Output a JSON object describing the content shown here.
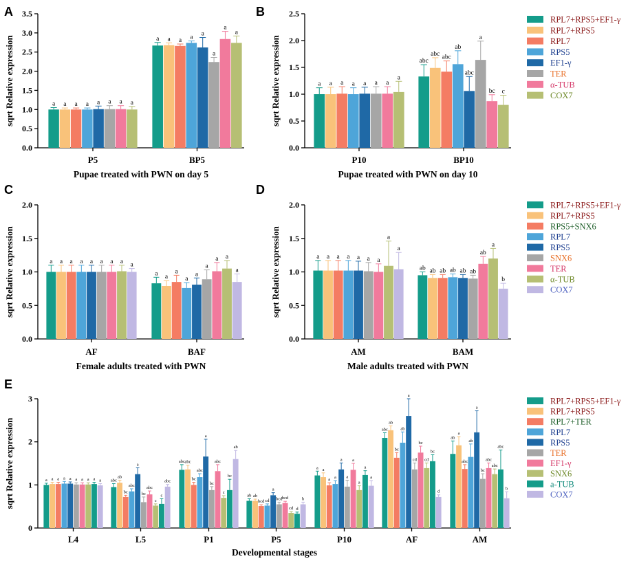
{
  "colors": {
    "teal": "#149c8a",
    "peach": "#f9c27a",
    "salmon": "#f47c63",
    "sky": "#4ea5d9",
    "navy": "#1f69a6",
    "grey": "#a6a6a6",
    "pink": "#f17a9c",
    "olive": "#b6bf74",
    "lavender": "#c0b8e3",
    "darkred": "#8b1a1a",
    "darkgreen": "#1f5f2a",
    "darkblue": "#1d3f8f",
    "orange": "#e8712a",
    "crimson": "#d43767",
    "darkolive": "#6f8a2a",
    "tealtext": "#0f8a7a",
    "purpletext": "#4b5fbf",
    "navytext": "#1d3f8f"
  },
  "chart_data": [
    {
      "type": "bar",
      "panel": "A",
      "ylabel": "sqrt Relative expression",
      "xlabel": "Pupae treated with PWN on day 5",
      "ylim": [
        0,
        3.5
      ],
      "yticks": [
        "0.0",
        "0.5",
        "1.0",
        "1.5",
        "2.0",
        "2.5",
        "3.0",
        "3.5"
      ],
      "categories": [
        "P5",
        "BP5"
      ],
      "legend": [
        "RPL7+RPS5+EF1-γ",
        "RPL7+RPS5",
        "RPL7",
        "RPS5",
        "EF1-γ",
        "TER",
        "α-TUB",
        "COX7"
      ],
      "legend_colors": [
        "teal",
        "peach",
        "salmon",
        "sky",
        "navy",
        "grey",
        "pink",
        "olive"
      ],
      "legend_text_colors": [
        "darkred",
        "darkred",
        "darkred",
        "darkblue",
        "darkblue",
        "orange",
        "crimson",
        "darkolive"
      ],
      "series": [
        {
          "name": "RPL7+RPS5+EF1-γ",
          "values": [
            1.0,
            2.67
          ],
          "errors": [
            0.05,
            0.08
          ],
          "labels": [
            "a",
            "a"
          ]
        },
        {
          "name": "RPL7+RPS5",
          "values": [
            1.0,
            2.68
          ],
          "errors": [
            0.04,
            0.06
          ],
          "labels": [
            "a",
            "a"
          ]
        },
        {
          "name": "RPL7",
          "values": [
            1.0,
            2.66
          ],
          "errors": [
            0.04,
            0.05
          ],
          "labels": [
            "a",
            "a"
          ]
        },
        {
          "name": "RPS5",
          "values": [
            1.0,
            2.74
          ],
          "errors": [
            0.04,
            0.05
          ],
          "labels": [
            "a",
            "a"
          ]
        },
        {
          "name": "EF1-γ",
          "values": [
            1.01,
            2.62
          ],
          "errors": [
            0.08,
            0.26
          ],
          "labels": [
            "a",
            "a"
          ]
        },
        {
          "name": "TER",
          "values": [
            1.01,
            2.24
          ],
          "errors": [
            0.09,
            0.12
          ],
          "labels": [
            "a",
            "a"
          ]
        },
        {
          "name": "α-TUB",
          "values": [
            1.01,
            2.84
          ],
          "errors": [
            0.09,
            0.2
          ],
          "labels": [
            "a",
            "a"
          ]
        },
        {
          "name": "COX7",
          "values": [
            1.0,
            2.74
          ],
          "errors": [
            0.08,
            0.18
          ],
          "labels": [
            "a",
            "a"
          ]
        }
      ]
    },
    {
      "type": "bar",
      "panel": "B",
      "ylabel": "sqrt Relative expression",
      "xlabel": "Pupae treated with PWN on day 10",
      "ylim": [
        0,
        2.5
      ],
      "yticks": [
        "0.0",
        "0.5",
        "1.0",
        "1.5",
        "2.0",
        "2.5"
      ],
      "categories": [
        "P10",
        "BP10"
      ],
      "legend": [
        "RPL7+RPS5+EF1-γ",
        "RPL7+RPS5",
        "RPL7",
        "RPS5",
        "EF1-γ",
        "TER",
        "α-TUB",
        "COX7"
      ],
      "legend_colors": [
        "teal",
        "peach",
        "salmon",
        "sky",
        "navy",
        "grey",
        "pink",
        "olive"
      ],
      "legend_text_colors": [
        "darkred",
        "darkred",
        "darkred",
        "darkblue",
        "darkblue",
        "orange",
        "crimson",
        "darkolive"
      ],
      "series": [
        {
          "name": "RPL7+RPS5+EF1-γ",
          "values": [
            1.0,
            1.33
          ],
          "errors": [
            0.12,
            0.22
          ],
          "labels": [
            "a",
            "abc"
          ]
        },
        {
          "name": "RPL7+RPS5",
          "values": [
            1.0,
            1.49
          ],
          "errors": [
            0.13,
            0.19
          ],
          "labels": [
            "a",
            "abc"
          ]
        },
        {
          "name": "RPL7",
          "values": [
            1.01,
            1.42
          ],
          "errors": [
            0.13,
            0.2
          ],
          "labels": [
            "a",
            "abc"
          ]
        },
        {
          "name": "RPS5",
          "values": [
            1.0,
            1.56
          ],
          "errors": [
            0.12,
            0.25
          ],
          "labels": [
            "a",
            "ab"
          ]
        },
        {
          "name": "EF1-γ",
          "values": [
            1.01,
            1.06
          ],
          "errors": [
            0.12,
            0.27
          ],
          "labels": [
            "a",
            "abc"
          ]
        },
        {
          "name": "TER",
          "values": [
            1.01,
            1.64
          ],
          "errors": [
            0.13,
            0.35
          ],
          "labels": [
            "a",
            "a"
          ]
        },
        {
          "name": "α-TUB",
          "values": [
            1.01,
            0.87
          ],
          "errors": [
            0.13,
            0.12
          ],
          "labels": [
            "a",
            "bc"
          ]
        },
        {
          "name": "COX7",
          "values": [
            1.04,
            0.8
          ],
          "errors": [
            0.2,
            0.18
          ],
          "labels": [
            "a",
            "c"
          ]
        }
      ]
    },
    {
      "type": "bar",
      "panel": "C",
      "ylabel": "sqrt Relative expression",
      "xlabel": "Female adults treated with PWN",
      "ylim": [
        0,
        2.0
      ],
      "yticks": [
        "0.0",
        "0.5",
        "1.0",
        "1.5",
        "2.0"
      ],
      "categories": [
        "AF",
        "BAF"
      ],
      "legend": [],
      "legend_colors": [],
      "legend_text_colors": [],
      "series": [
        {
          "name": "RPL7+RPS5+EF1-γ",
          "values": [
            1.0,
            0.83
          ],
          "errors": [
            0.1,
            0.09
          ],
          "labels": [
            "a",
            "a"
          ]
        },
        {
          "name": "RPL7+RPS5",
          "values": [
            1.0,
            0.79
          ],
          "errors": [
            0.1,
            0.08
          ],
          "labels": [
            "a",
            "a"
          ]
        },
        {
          "name": "RPS5+SNX6",
          "values": [
            1.0,
            0.85
          ],
          "errors": [
            0.1,
            0.1
          ],
          "labels": [
            "a",
            "a"
          ]
        },
        {
          "name": "RPL7",
          "values": [
            1.0,
            0.76
          ],
          "errors": [
            0.1,
            0.08
          ],
          "labels": [
            "a",
            "a"
          ]
        },
        {
          "name": "RPS5",
          "values": [
            1.0,
            0.81
          ],
          "errors": [
            0.1,
            0.1
          ],
          "labels": [
            "a",
            "a"
          ]
        },
        {
          "name": "SNX6",
          "values": [
            1.0,
            0.89
          ],
          "errors": [
            0.1,
            0.14
          ],
          "labels": [
            "a",
            "a"
          ]
        },
        {
          "name": "TER",
          "values": [
            1.0,
            1.01
          ],
          "errors": [
            0.1,
            0.13
          ],
          "labels": [
            "a",
            "a"
          ]
        },
        {
          "name": "α-TUB",
          "values": [
            1.01,
            1.05
          ],
          "errors": [
            0.09,
            0.12
          ],
          "labels": [
            "a",
            "a"
          ]
        },
        {
          "name": "COX7",
          "values": [
            1.0,
            0.85
          ],
          "errors": [
            0.05,
            0.12
          ],
          "labels": [
            "a",
            "a"
          ]
        }
      ]
    },
    {
      "type": "bar",
      "panel": "D",
      "ylabel": "sqrt Relative expression",
      "xlabel": "Male adults treated with PWN",
      "ylim": [
        0,
        2.0
      ],
      "yticks": [
        "0.0",
        "0.5",
        "1.0",
        "1.5",
        "2.0"
      ],
      "categories": [
        "AM",
        "BAM"
      ],
      "legend": [
        "RPL7+RPS5+EF1-γ",
        "RPL7+RPS5",
        "RPS5+SNX6",
        "RPL7",
        "RPS5",
        "SNX6",
        "TER",
        "α-TUB",
        "COX7"
      ],
      "legend_colors": [
        "teal",
        "peach",
        "salmon",
        "sky",
        "navy",
        "grey",
        "pink",
        "olive",
        "lavender"
      ],
      "legend_text_colors": [
        "darkred",
        "darkred",
        "darkgreen",
        "darkblue",
        "darkblue",
        "orange",
        "crimson",
        "darkolive",
        "purpletext"
      ],
      "series": [
        {
          "name": "RPL7+RPS5+EF1-γ",
          "values": [
            1.02,
            0.95
          ],
          "errors": [
            0.15,
            0.05
          ],
          "labels": [
            "a",
            "ab"
          ]
        },
        {
          "name": "RPL7+RPS5",
          "values": [
            1.02,
            0.91
          ],
          "errors": [
            0.15,
            0.05
          ],
          "labels": [
            "a",
            "ab"
          ]
        },
        {
          "name": "RPS5+SNX6",
          "values": [
            1.02,
            0.91
          ],
          "errors": [
            0.15,
            0.05
          ],
          "labels": [
            "a",
            "ab"
          ]
        },
        {
          "name": "RPL7",
          "values": [
            1.02,
            0.92
          ],
          "errors": [
            0.15,
            0.05
          ],
          "labels": [
            "a",
            "ab"
          ]
        },
        {
          "name": "RPS5",
          "values": [
            1.02,
            0.91
          ],
          "errors": [
            0.14,
            0.05
          ],
          "labels": [
            "a",
            "ab"
          ]
        },
        {
          "name": "SNX6",
          "values": [
            1.01,
            0.9
          ],
          "errors": [
            0.13,
            0.05
          ],
          "labels": [
            "a",
            "ab"
          ]
        },
        {
          "name": "TER",
          "values": [
            1.0,
            1.12
          ],
          "errors": [
            0.12,
            0.11
          ],
          "labels": [
            "a",
            "ab"
          ]
        },
        {
          "name": "α-TUB",
          "values": [
            1.09,
            1.2
          ],
          "errors": [
            0.37,
            0.15
          ],
          "labels": [
            "a",
            "a"
          ]
        },
        {
          "name": "COX7",
          "values": [
            1.04,
            0.75
          ],
          "errors": [
            0.25,
            0.08
          ],
          "labels": [
            "a",
            "b"
          ]
        }
      ]
    },
    {
      "type": "bar",
      "panel": "E",
      "ylabel": "sqrt Relative expression",
      "xlabel": "Developmental stages",
      "ylim": [
        0,
        3
      ],
      "yticks": [
        "0",
        "1",
        "2",
        "3"
      ],
      "categories": [
        "L4",
        "L5",
        "P1",
        "P5",
        "P10",
        "AF",
        "AM"
      ],
      "legend": [
        "RPL7+RPS5+EF1-γ",
        "RPL7+RPS5",
        "RPL7+TER",
        "RPL7",
        "RPS5",
        "TER",
        "EF1-γ",
        "SNX6",
        "a-TUB",
        "COX7"
      ],
      "legend_colors": [
        "teal",
        "peach",
        "salmon",
        "sky",
        "navy",
        "grey",
        "pink",
        "olive",
        "teal",
        "lavender"
      ],
      "legend_text_colors": [
        "darkred",
        "darkred",
        "darkgreen",
        "darkblue",
        "darkblue",
        "orange",
        "crimson",
        "darkolive",
        "tealtext",
        "purpletext"
      ],
      "series": [
        {
          "name": "RPL7+RPS5+EF1-γ",
          "values": [
            1.0,
            0.95,
            1.35,
            0.63,
            1.22,
            2.09,
            1.72
          ],
          "errors": [
            0.04,
            0.08,
            0.12,
            0.05,
            0.1,
            0.12,
            0.3
          ],
          "labels": [
            "a",
            "abc",
            "abc",
            "ab",
            "a",
            "abc",
            "ab"
          ]
        },
        {
          "name": "RPL7+RPS5",
          "values": [
            1.02,
            1.05,
            1.36,
            0.63,
            1.18,
            2.27,
            1.92
          ],
          "errors": [
            0.04,
            0.06,
            0.1,
            0.04,
            0.1,
            0.1,
            0.2
          ],
          "labels": [
            "a",
            "ab",
            "abc",
            "ab",
            "a",
            "ab",
            "a"
          ]
        },
        {
          "name": "RPL7+TER",
          "values": [
            1.02,
            0.72,
            1.0,
            0.51,
            0.99,
            1.63,
            1.37
          ],
          "errors": [
            0.04,
            0.04,
            0.06,
            0.03,
            0.06,
            0.12,
            0.1
          ],
          "labels": [
            "a",
            "bc",
            "bc",
            "bcd",
            "a",
            "bc",
            "abc"
          ]
        },
        {
          "name": "RPL7",
          "values": [
            1.03,
            0.85,
            1.18,
            0.52,
            1.02,
            1.98,
            1.65
          ],
          "errors": [
            0.05,
            0.06,
            0.08,
            0.04,
            0.08,
            0.25,
            0.3
          ],
          "labels": [
            "a",
            "abc",
            "abc",
            "cd",
            "a",
            "ab",
            "ab"
          ]
        },
        {
          "name": "RPS5",
          "values": [
            1.03,
            1.25,
            1.66,
            0.76,
            1.36,
            2.6,
            2.22
          ],
          "errors": [
            0.04,
            0.15,
            0.4,
            0.06,
            0.15,
            0.4,
            0.5
          ],
          "labels": [
            "a",
            "a",
            "a",
            "a",
            "a",
            "a",
            "a"
          ]
        },
        {
          "name": "TER",
          "values": [
            1.01,
            0.6,
            0.88,
            0.55,
            0.96,
            1.36,
            1.14
          ],
          "errors": [
            0.04,
            0.12,
            0.08,
            0.05,
            0.15,
            0.15,
            0.12
          ],
          "labels": [
            "a",
            "bc",
            "bc",
            "bcd",
            "a",
            "cd",
            "bc"
          ]
        },
        {
          "name": "EF1-γ",
          "values": [
            1.01,
            0.78,
            1.32,
            0.58,
            1.35,
            1.75,
            1.39
          ],
          "errors": [
            0.04,
            0.08,
            0.15,
            0.04,
            0.15,
            0.15,
            0.12
          ],
          "labels": [
            "a",
            "abc",
            "abc",
            "bcd",
            "a",
            "bc",
            "abc"
          ]
        },
        {
          "name": "SNX6",
          "values": [
            1.01,
            0.52,
            0.7,
            0.35,
            0.88,
            1.39,
            1.25
          ],
          "errors": [
            0.04,
            0.04,
            0.05,
            0.03,
            0.1,
            0.12,
            0.12
          ],
          "labels": [
            "a",
            "c",
            "c",
            "cd",
            "a",
            "cd",
            "abc"
          ]
        },
        {
          "name": "a-TUB",
          "values": [
            1.02,
            0.56,
            0.88,
            0.33,
            1.23,
            1.55,
            1.36
          ],
          "errors": [
            0.04,
            0.12,
            0.25,
            0.04,
            0.1,
            0.15,
            0.45
          ],
          "labels": [
            "a",
            "c",
            "bc",
            "d",
            "a",
            "bc",
            "abc"
          ]
        },
        {
          "name": "COX7",
          "values": [
            0.99,
            0.96,
            1.6,
            0.55,
            0.98,
            0.72,
            0.69
          ],
          "errors": [
            0.04,
            0.05,
            0.2,
            0.05,
            0.12,
            0.05,
            0.15
          ],
          "labels": [
            "a",
            "abc",
            "ab",
            "b",
            "a",
            "d",
            "b"
          ]
        }
      ]
    }
  ]
}
